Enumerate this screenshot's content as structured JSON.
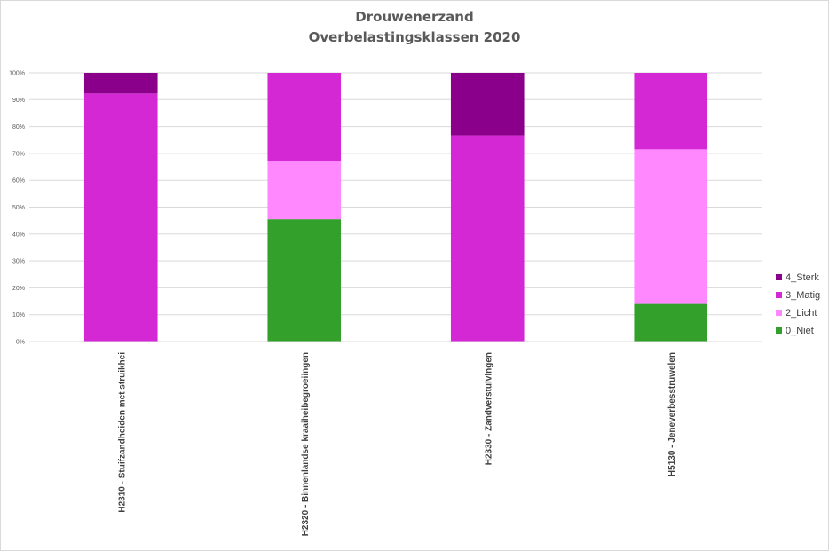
{
  "chart_data": {
    "type": "bar",
    "stacked": true,
    "normalized": true,
    "title": [
      "Drouwenerzand",
      "Overbelastingsklassen 2020"
    ],
    "categories": [
      "H2310 - Stuifzandheiden met struikhei",
      "H2320 - Binnenlandse kraaiheibegroeiingen",
      "H2330 - Zandverstuivingen",
      "H5130 - Jeneverbesstruwelen"
    ],
    "series": [
      {
        "name": "0_Niet",
        "color": "#33a02c",
        "values": [
          0,
          45.5,
          0,
          14
        ]
      },
      {
        "name": "2_Licht",
        "color": "#ff88ff",
        "values": [
          0,
          21.5,
          0,
          57.5
        ]
      },
      {
        "name": "3_Matig",
        "color": "#d528d5",
        "values": [
          92.3,
          33,
          76.7,
          28.5
        ]
      },
      {
        "name": "4_Sterk",
        "color": "#8b008b",
        "values": [
          7.7,
          0,
          23.3,
          0
        ]
      }
    ],
    "ylim": [
      0,
      100
    ],
    "yticks": [
      "0%",
      "10%",
      "20%",
      "30%",
      "40%",
      "50%",
      "60%",
      "70%",
      "80%",
      "90%",
      "100%"
    ],
    "grid": true,
    "legend": {
      "position": "right",
      "order": [
        "4_Sterk",
        "3_Matig",
        "2_Licht",
        "0_Niet"
      ]
    }
  }
}
